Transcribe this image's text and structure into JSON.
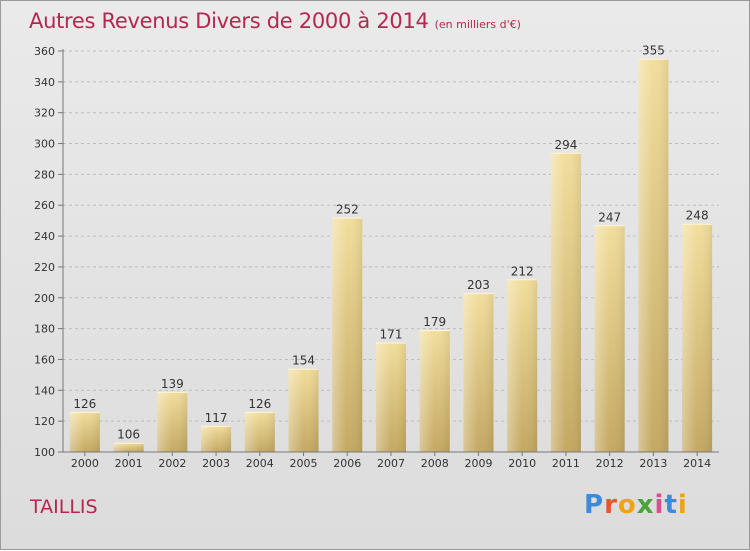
{
  "header": {
    "title": "Autres Revenus Divers de 2000 à 2014",
    "subtitle": "(en milliers d'€)"
  },
  "footer": {
    "commune": "TAILLIS",
    "logo_letters": [
      "P",
      "r",
      "o",
      "x",
      "i",
      "t",
      "i"
    ],
    "logo_colors": [
      "#3f8ad8",
      "#e8562a",
      "#f0a317",
      "#4ba33c",
      "#e04b8e",
      "#3f8ad8",
      "#f0a317"
    ]
  },
  "chart_data": {
    "type": "bar",
    "categories": [
      "2000",
      "2001",
      "2002",
      "2003",
      "2004",
      "2005",
      "2006",
      "2007",
      "2008",
      "2009",
      "2010",
      "2011",
      "2012",
      "2013",
      "2014"
    ],
    "values": [
      126,
      106,
      139,
      117,
      126,
      154,
      252,
      171,
      179,
      203,
      212,
      294,
      247,
      355,
      248
    ],
    "data_labels": [
      "126",
      "106",
      "139",
      "117",
      "126",
      "154",
      "252",
      "171",
      "179",
      "203",
      "212",
      "294",
      "247",
      "355",
      "248"
    ],
    "title": "Autres Revenus Divers de 2000 à 2014",
    "ylim": [
      100,
      360
    ],
    "yticks": [
      100,
      120,
      140,
      160,
      180,
      200,
      220,
      240,
      260,
      280,
      300,
      320,
      340,
      360
    ],
    "ytick_labels": [
      "100",
      "120",
      "140",
      "160",
      "180",
      "200",
      "220",
      "240",
      "260",
      "280",
      "300",
      "320",
      "340",
      "360"
    ],
    "grid": "horizontal dashed",
    "bar_color": "#d8bd74"
  }
}
